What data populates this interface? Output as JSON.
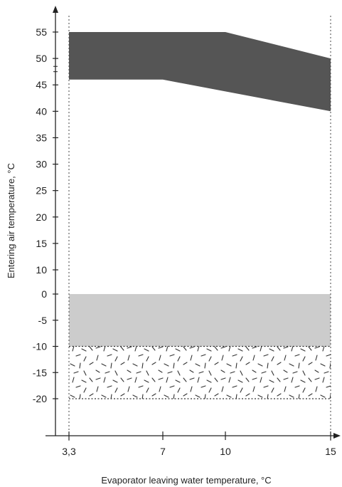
{
  "chart_data": {
    "type": "area",
    "xlabel": "Evaporator leaving water temperature, °C",
    "ylabel": "Entering air temperature, °C",
    "xlim": [
      3.3,
      15
    ],
    "x_ticks": [
      {
        "value": 3.3,
        "label": "3,3"
      },
      {
        "value": 7,
        "label": "7"
      },
      {
        "value": 10,
        "label": "10"
      },
      {
        "value": 15,
        "label": "15"
      }
    ],
    "y_ticks": [
      "55",
      "50",
      "45",
      "40",
      "35",
      "30",
      "25",
      "20",
      "15",
      "10",
      "0",
      "-5",
      "-10",
      "-15",
      "-20"
    ],
    "regions": [
      {
        "fill": "dark-gray",
        "color": "#555555",
        "upper": [
          [
            3.3,
            55
          ],
          [
            10,
            55
          ],
          [
            15,
            50
          ]
        ],
        "lower": [
          [
            3.3,
            46
          ],
          [
            7,
            46
          ],
          [
            15,
            40
          ]
        ]
      },
      {
        "fill": "light-gray",
        "color": "#cccccc",
        "upper": [
          [
            3.3,
            0
          ],
          [
            15,
            0
          ]
        ],
        "lower": [
          [
            3.3,
            -10
          ],
          [
            15,
            -10
          ]
        ]
      },
      {
        "fill": "speckled",
        "color": "#333333",
        "upper": [
          [
            3.3,
            -10
          ],
          [
            15,
            -10
          ]
        ],
        "lower": [
          [
            3.3,
            -20
          ],
          [
            15,
            -20
          ]
        ]
      }
    ],
    "grid": false,
    "legend": "none"
  }
}
